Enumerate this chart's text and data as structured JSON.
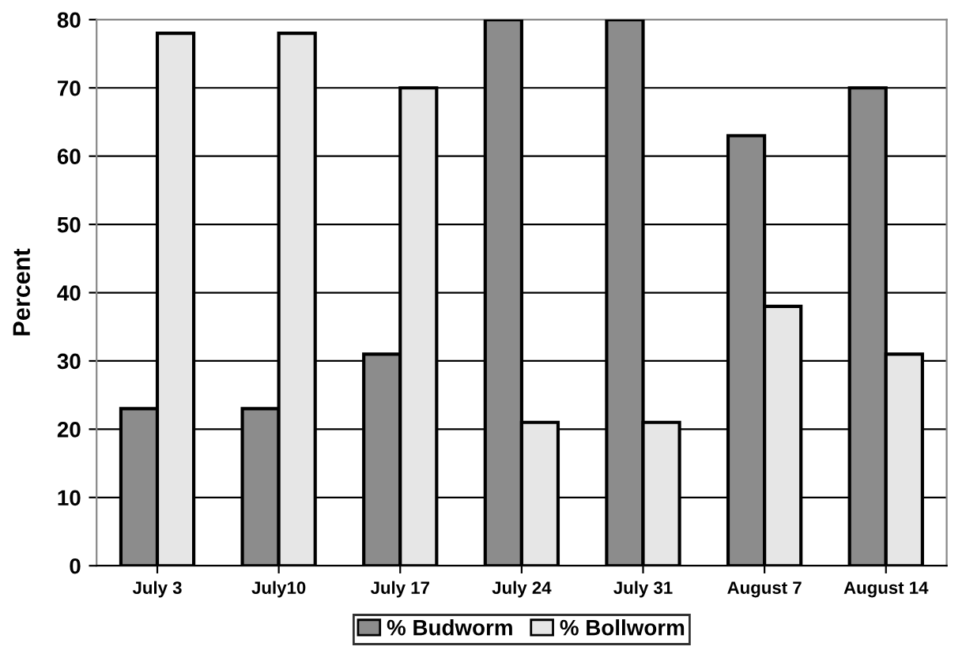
{
  "chart_data": {
    "type": "bar",
    "ylabel": "Percent",
    "categories": [
      "July 3",
      "July10",
      "July 17",
      "July 24",
      "July 31",
      "August 7",
      "August 14"
    ],
    "series": [
      {
        "name": "% Budworm",
        "color": "#8c8c8c",
        "values": [
          23,
          23,
          31,
          80,
          80,
          63,
          70
        ]
      },
      {
        "name": "% Bollworm",
        "color": "#e6e6e6",
        "values": [
          78,
          78,
          70,
          21,
          21,
          38,
          31
        ]
      }
    ],
    "ylim": [
      0,
      80
    ],
    "yticks": [
      0,
      10,
      20,
      30,
      40,
      50,
      60,
      70,
      80
    ],
    "grid": "y",
    "legend": "bottom"
  }
}
